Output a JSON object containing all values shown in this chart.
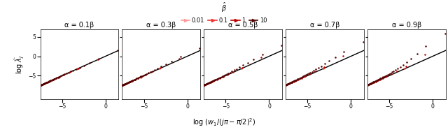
{
  "alphas": [
    0.1,
    0.3,
    0.5,
    0.7,
    0.9
  ],
  "alpha_labels": [
    "α = 0.1β",
    "α = 0.3β",
    "α = 0.5β",
    "α = 0.7β",
    "α = 0.9β"
  ],
  "betas": [
    0.01,
    0.1,
    1,
    10
  ],
  "beta_colors": [
    "#FF9999",
    "#EE3333",
    "#BB0000",
    "#550000"
  ],
  "xlim": [
    -7.5,
    1.5
  ],
  "ylim": [
    -11,
    7
  ],
  "xticks": [
    -5,
    0
  ],
  "yticks": [
    -5,
    0,
    5
  ],
  "xlabel": "log $(w_1/(j\\pi - \\pi/2)^2)$",
  "ylabel": "log $\\widehat{\\lambda}_j$",
  "figsize": [
    6.4,
    1.89
  ],
  "dpi": 100,
  "bg": "#ffffff",
  "n_j": 500
}
